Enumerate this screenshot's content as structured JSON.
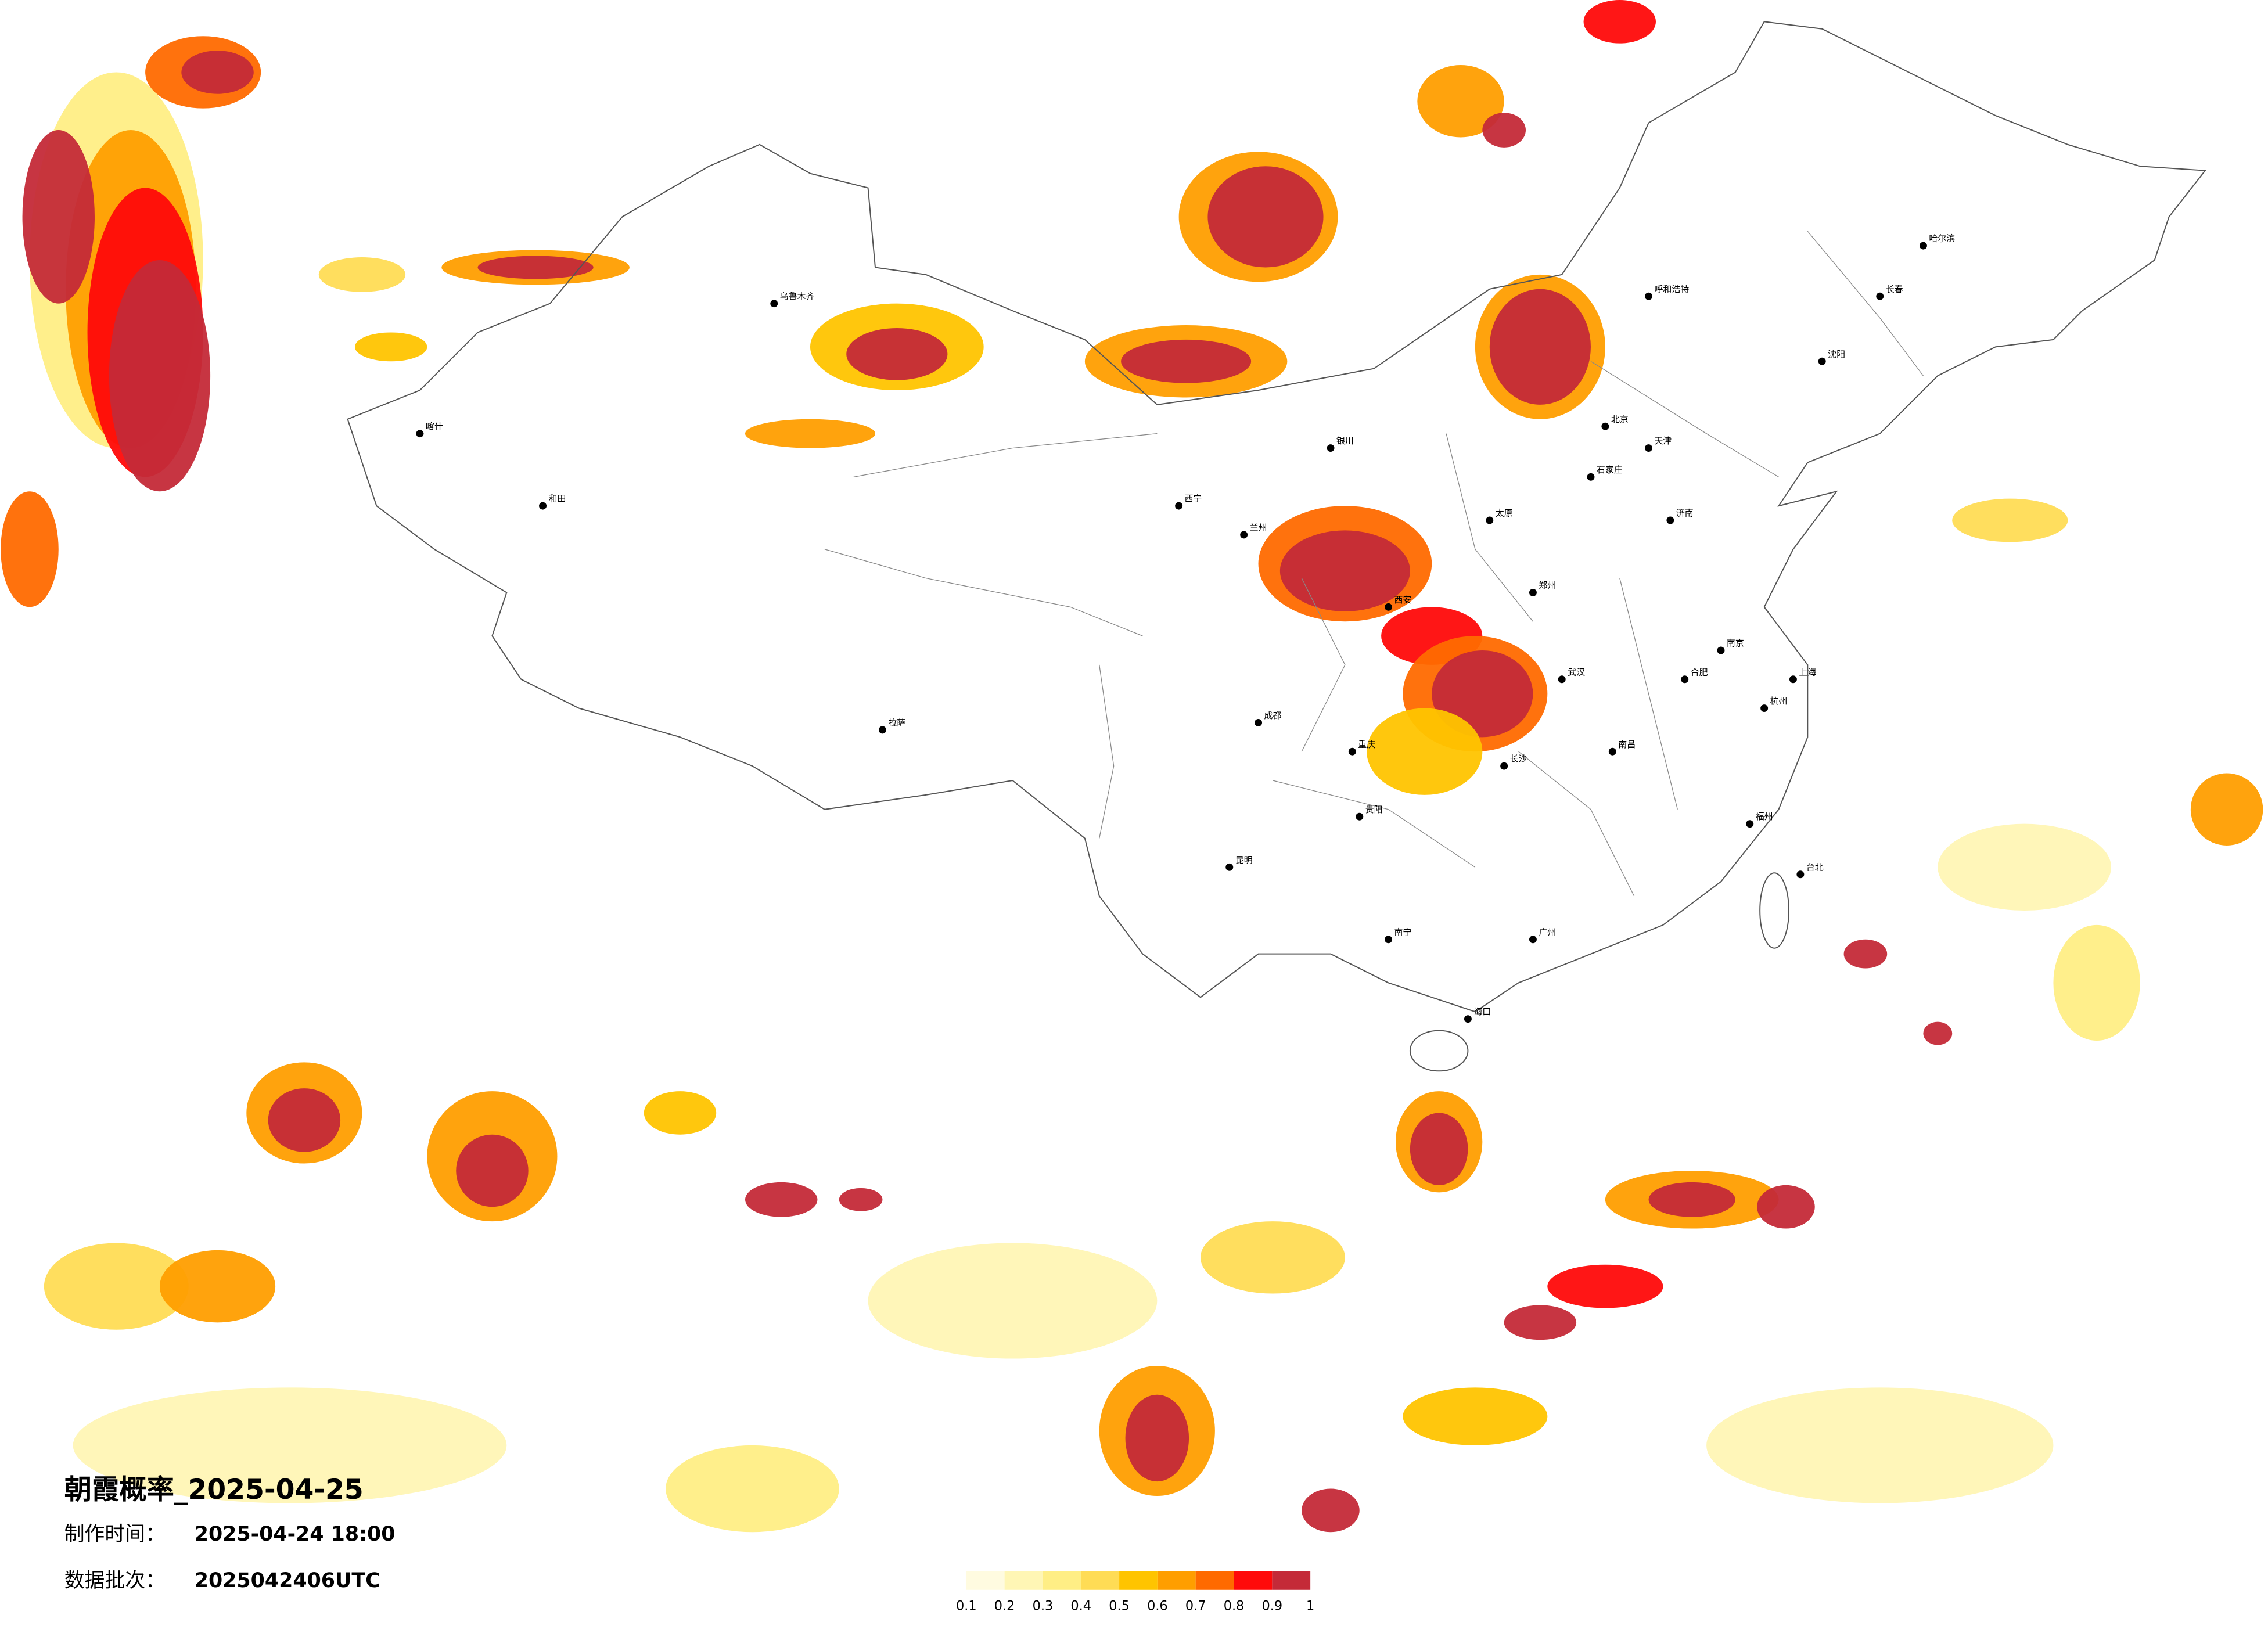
{
  "title": "朝霞概率_2025-04-25",
  "info": [
    {
      "label": "制作时间：",
      "value": "2025-04-24 18:00"
    },
    {
      "label": "数据批次：",
      "value": "2025042406UTC"
    }
  ],
  "legend": {
    "ticks": [
      0.1,
      0.2,
      0.3,
      0.4,
      0.5,
      0.6,
      0.7,
      0.8,
      0.9,
      1
    ],
    "colors": [
      "#fffbe0",
      "#fff6b5",
      "#ffee85",
      "#ffdc55",
      "#ffc400",
      "#ff9e00",
      "#ff6a00",
      "#ff0a0a",
      "#c42a38"
    ]
  },
  "cities": [
    "喀什",
    "和田",
    "乌鲁木齐",
    "拉萨",
    "西宁",
    "兰州",
    "银川",
    "成都",
    "重庆",
    "昆明",
    "贵阳",
    "南宁",
    "广州",
    "海口",
    "长沙",
    "武汉",
    "郑州",
    "西安",
    "太原",
    "石家庄",
    "北京",
    "天津",
    "济南",
    "南京",
    "合肥",
    "上海",
    "杭州",
    "南昌",
    "福州",
    "台北",
    "沈阳",
    "长春",
    "哈尔滨",
    "呼和浩特"
  ]
}
